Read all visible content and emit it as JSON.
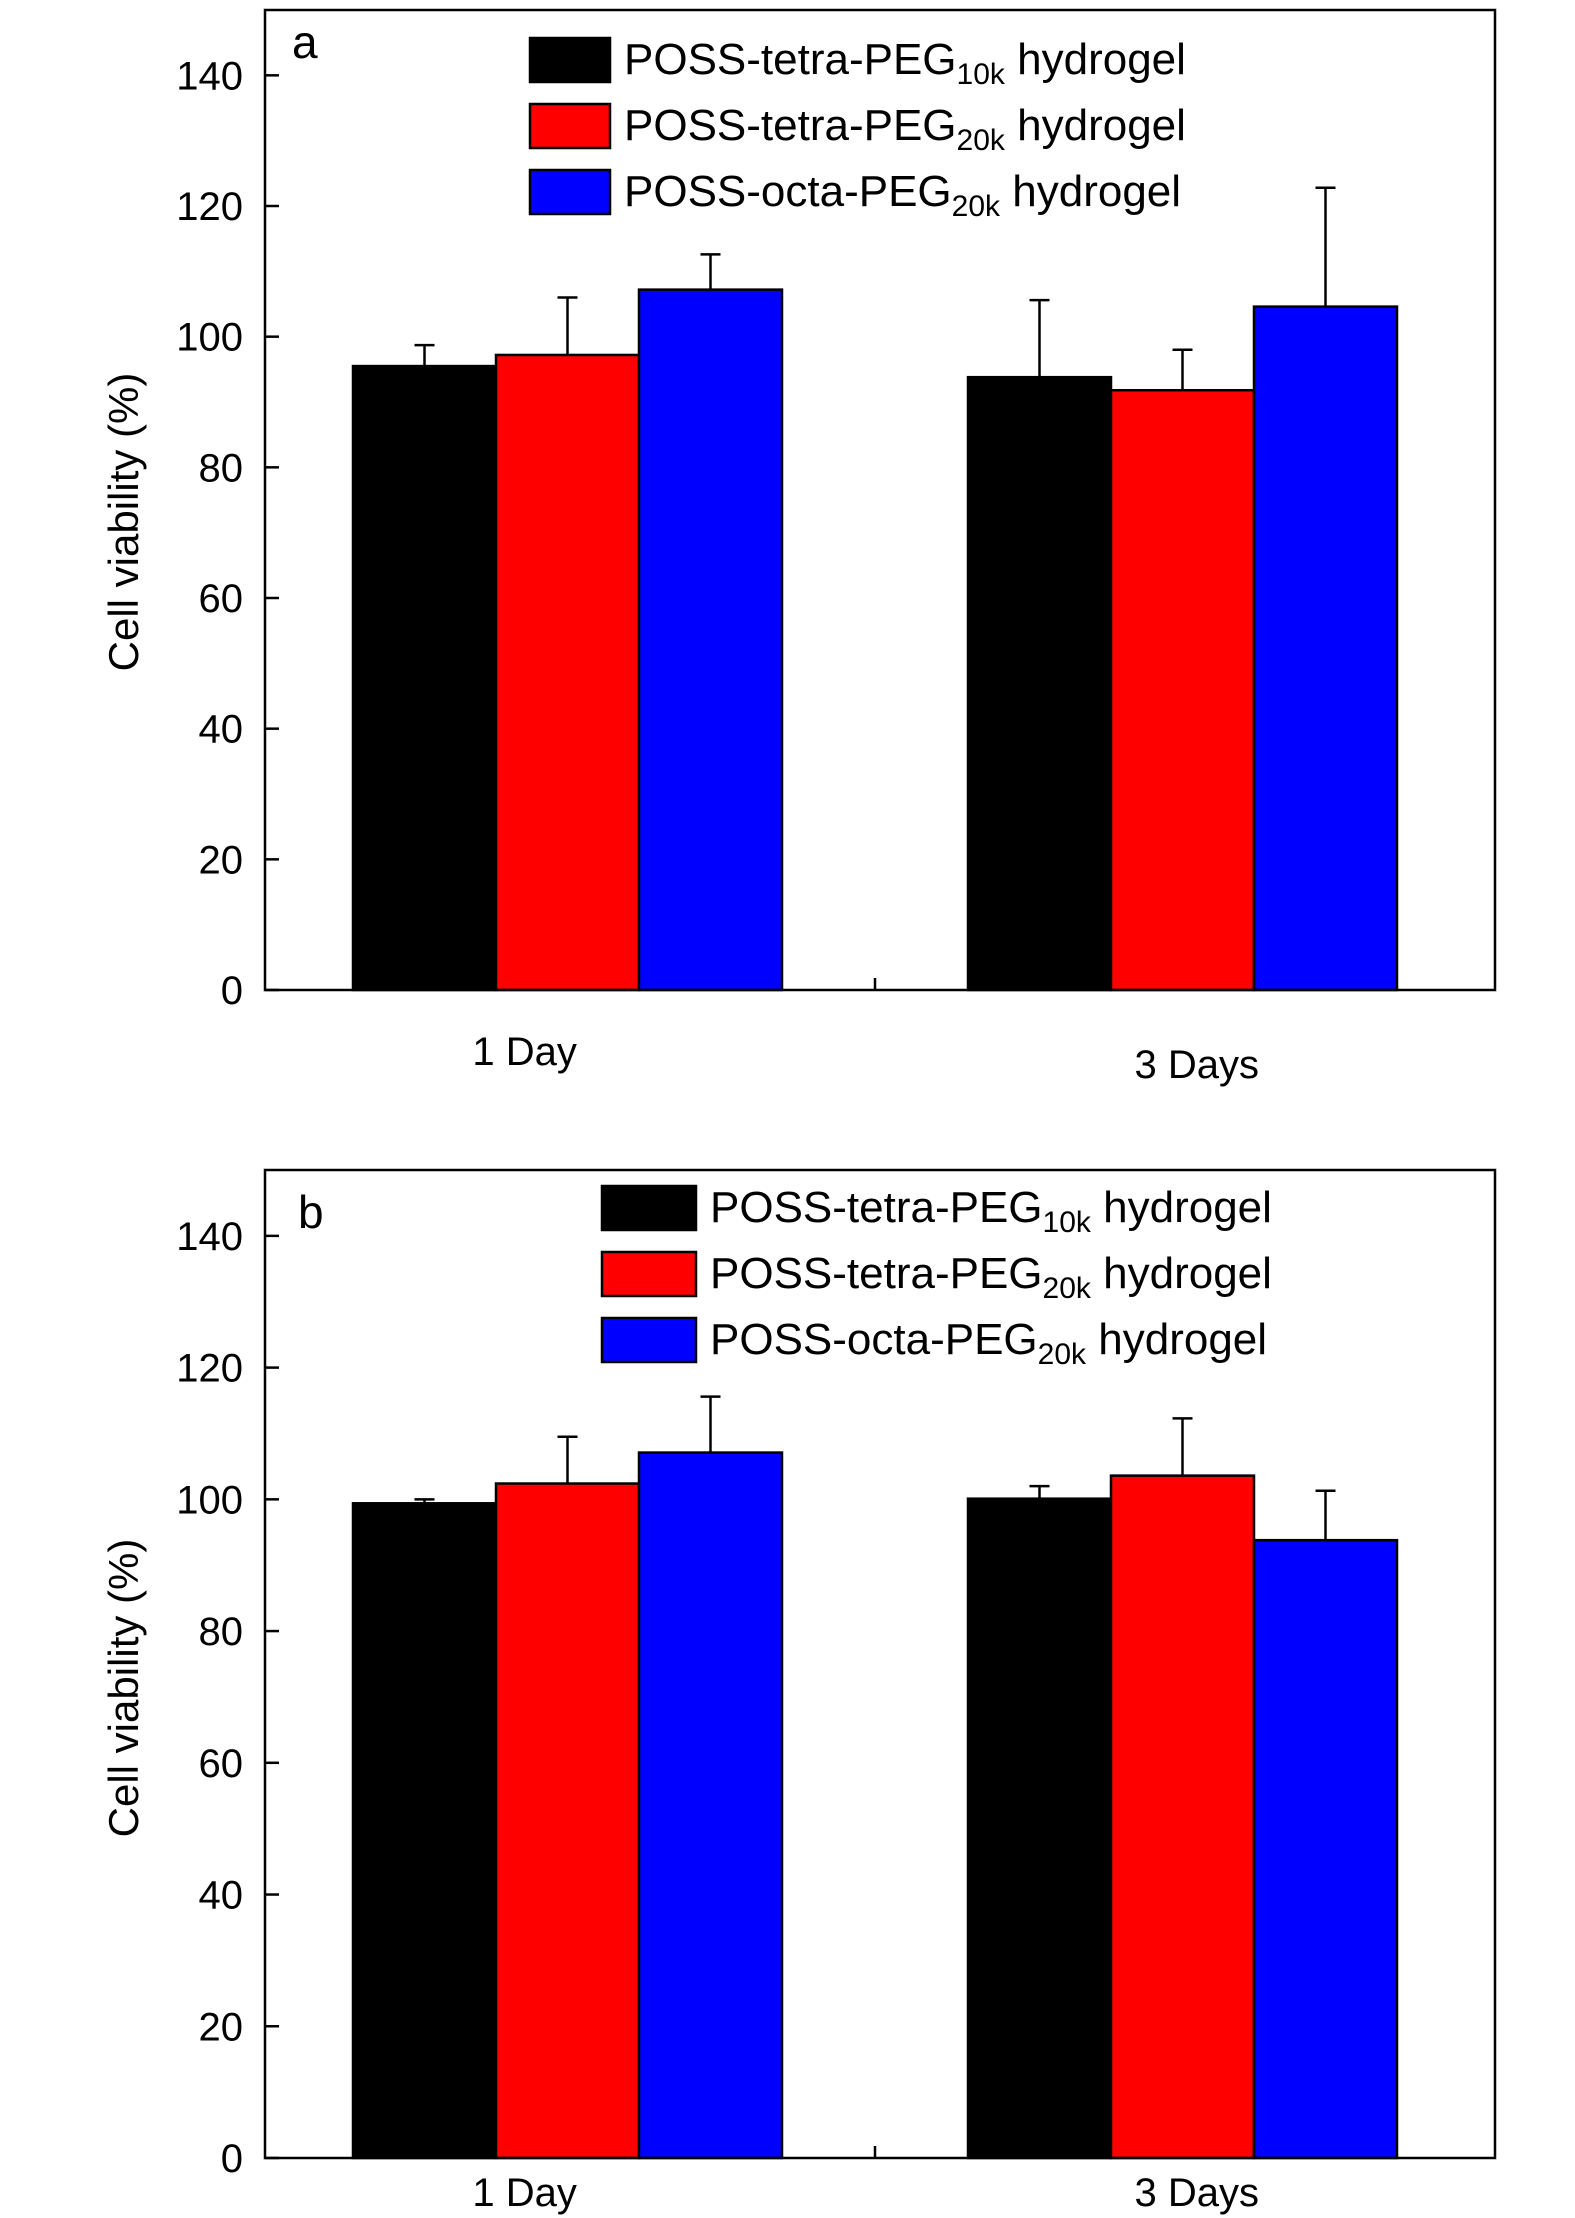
{
  "chart_data": [
    {
      "type": "bar",
      "panel_label": "a",
      "ylabel": "Cell viability (%)",
      "xlabel": "",
      "ylim": [
        0,
        150
      ],
      "yticks": [
        0,
        20,
        40,
        60,
        80,
        100,
        120,
        140
      ],
      "categories": [
        "1 Day",
        "3 Days"
      ],
      "legend_position": "top-right",
      "series": [
        {
          "name": "POSS-tetra-PEG10k hydrogel",
          "legend_main": "POSS-tetra-PEG",
          "legend_sub": "10k",
          "legend_tail": " hydrogel",
          "color": "#000000",
          "values": [
            95.5,
            93.8
          ],
          "errors": [
            3.2,
            11.8
          ]
        },
        {
          "name": "POSS-tetra-PEG20k hydrogel",
          "legend_main": "POSS-tetra-PEG",
          "legend_sub": "20k",
          "legend_tail": " hydrogel",
          "color": "#ff0000",
          "values": [
            97.2,
            91.8
          ],
          "errors": [
            8.8,
            6.2
          ]
        },
        {
          "name": "POSS-octa-PEG20k hydrogel",
          "legend_main": "POSS-octa-PEG",
          "legend_sub": "20k",
          "legend_tail": " hydrogel",
          "color": "#0000ff",
          "values": [
            107.2,
            104.6
          ],
          "errors": [
            5.4,
            18.2
          ]
        }
      ]
    },
    {
      "type": "bar",
      "panel_label": "b",
      "ylabel": "Cell viability (%)",
      "xlabel": "",
      "ylim": [
        0,
        150
      ],
      "yticks": [
        0,
        20,
        40,
        60,
        80,
        100,
        120,
        140
      ],
      "categories": [
        "1 Day",
        "3 Days"
      ],
      "legend_position": "top-right",
      "series": [
        {
          "name": "POSS-tetra-PEG10k hydrogel",
          "legend_main": "POSS-tetra-PEG",
          "legend_sub": "10k",
          "legend_tail": " hydrogel",
          "color": "#000000",
          "values": [
            99.4,
            100.1
          ],
          "errors": [
            0.6,
            1.9
          ]
        },
        {
          "name": "POSS-tetra-PEG20k hydrogel",
          "legend_main": "POSS-tetra-PEG",
          "legend_sub": "20k",
          "legend_tail": " hydrogel",
          "color": "#ff0000",
          "values": [
            102.4,
            103.6
          ],
          "errors": [
            7.1,
            8.7
          ]
        },
        {
          "name": "POSS-octa-PEG20k hydrogel",
          "legend_main": "POSS-octa-PEG",
          "legend_sub": "20k",
          "legend_tail": " hydrogel",
          "color": "#0000ff",
          "values": [
            107.1,
            93.8
          ],
          "errors": [
            8.5,
            7.5
          ]
        }
      ]
    }
  ]
}
